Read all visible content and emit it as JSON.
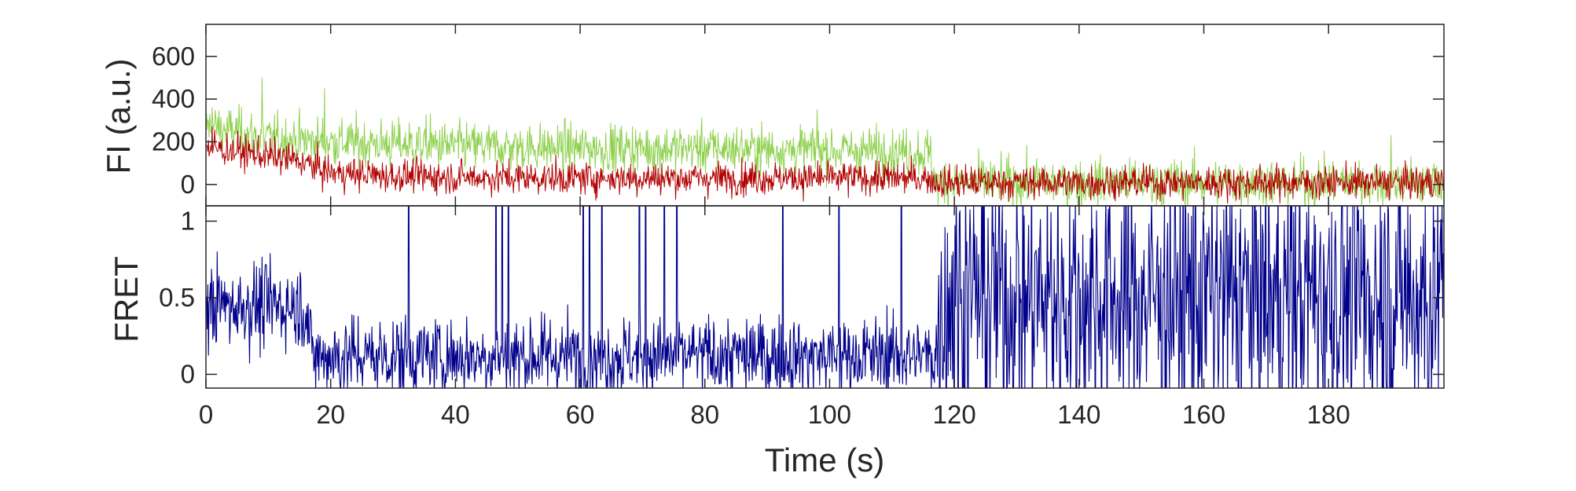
{
  "chart_data": [
    {
      "type": "line",
      "ylabel": "FI (a.u.)",
      "xlim": [
        0,
        198.5
      ],
      "ylim": [
        -100,
        750
      ],
      "yticks": [
        0,
        200,
        400,
        600
      ],
      "ytick_labels": [
        "0",
        "200",
        "400",
        "600"
      ],
      "grid": false,
      "legend": "none",
      "sampling_interval_s": 0.1,
      "series": [
        {
          "color": "#8fd14f",
          "x": [
            0,
            5,
            10,
            20,
            30,
            40,
            50,
            60,
            70,
            80,
            90,
            100,
            110,
            116,
            117,
            120,
            130,
            140,
            150,
            160,
            170,
            180,
            190,
            198.5
          ],
          "mean": [
            275,
            245,
            215,
            200,
            190,
            180,
            175,
            170,
            170,
            170,
            165,
            160,
            155,
            150,
            10,
            10,
            10,
            10,
            10,
            10,
            10,
            10,
            10,
            10
          ],
          "noise_sd": 55,
          "peaks": [
            [
              1,
              360
            ],
            [
              9,
              500
            ],
            [
              19,
              450
            ],
            [
              36,
              330
            ],
            [
              98,
              350
            ],
            [
              190,
              230
            ]
          ]
        },
        {
          "color": "#b20000",
          "x": [
            0,
            5,
            10,
            15,
            20,
            30,
            40,
            60,
            80,
            100,
            116,
            117,
            198.5
          ],
          "mean": [
            175,
            155,
            135,
            110,
            55,
            40,
            35,
            30,
            30,
            30,
            30,
            10,
            10
          ],
          "noise_sd": 38,
          "peaks": [
            [
              1,
              270
            ]
          ]
        }
      ]
    },
    {
      "type": "line",
      "ylabel": "FRET",
      "xlabel": "Time (s)",
      "xlim": [
        0,
        198.5
      ],
      "ylim": [
        -0.09,
        1.1
      ],
      "xticks": [
        0,
        20,
        40,
        60,
        80,
        100,
        120,
        140,
        160,
        180
      ],
      "xtick_labels": [
        "0",
        "20",
        "40",
        "60",
        "80",
        "100",
        "120",
        "140",
        "160",
        "180"
      ],
      "yticks": [
        0,
        0.5,
        1
      ],
      "ytick_labels": [
        "0",
        "0.5",
        "1"
      ],
      "grid": false,
      "legend": "none",
      "sampling_interval_s": 0.1,
      "series": [
        {
          "color": "#00008b",
          "x": [
            0,
            16,
            17,
            117,
            118,
            198.5
          ],
          "mean": [
            0.45,
            0.45,
            0.12,
            0.12,
            0.5,
            0.5
          ],
          "noise_sd": [
            0.14,
            0.14,
            0.13,
            0.13,
            0.45,
            0.45
          ],
          "spikes_to_top": [
            32.5,
            46.5,
            47.5,
            48.5,
            60.5,
            61.5,
            63.5,
            69.5,
            70.5,
            73.5,
            75.5,
            92.5,
            101.5,
            111.5
          ]
        }
      ]
    }
  ]
}
